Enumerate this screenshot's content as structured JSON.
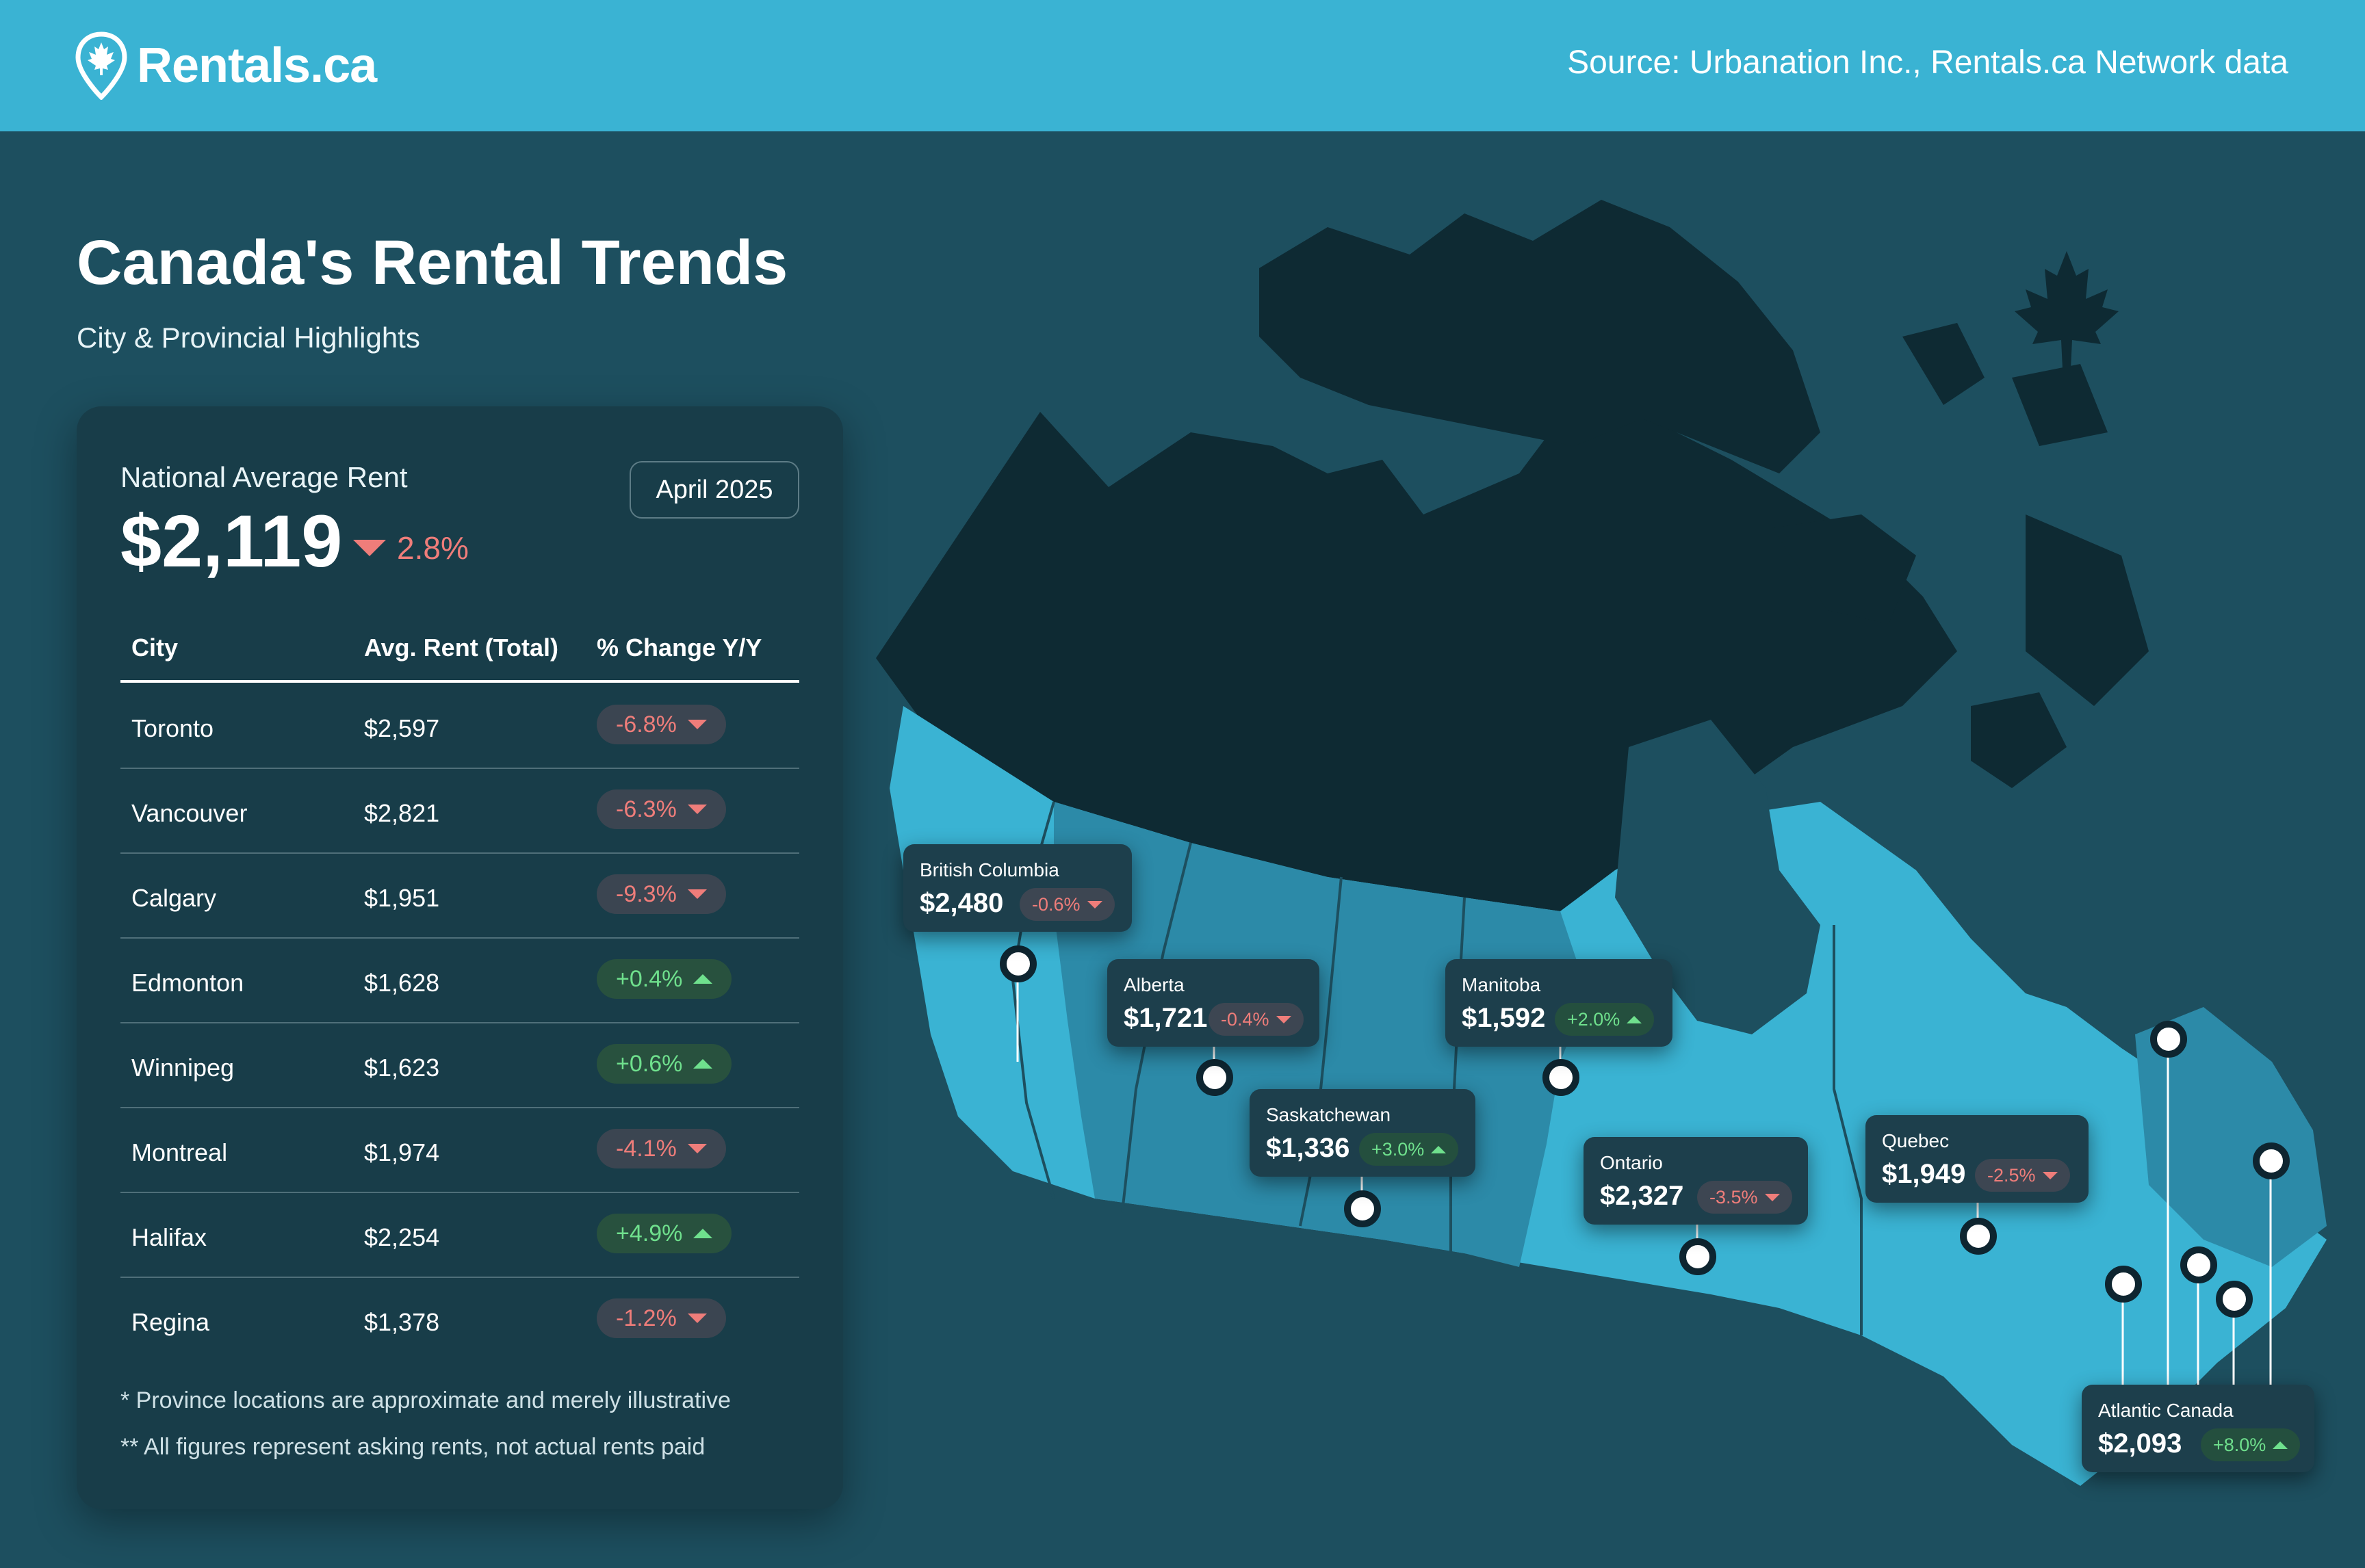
{
  "header": {
    "brand": "Rentals.ca",
    "source": "Source: Urbanation Inc., Rentals.ca Network data"
  },
  "title": "Canada's Rental Trends",
  "subtitle": "City & Provincial Highlights",
  "national": {
    "label": "National Average Rent",
    "value": "$2,119",
    "change": "2.8%",
    "direction": "down",
    "date": "April 2025"
  },
  "table": {
    "columns": [
      "City",
      "Avg. Rent (Total)",
      "% Change Y/Y"
    ],
    "rows": [
      {
        "city": "Toronto",
        "rent": "$2,597",
        "change": "-6.8%",
        "direction": "down"
      },
      {
        "city": "Vancouver",
        "rent": "$2,821",
        "change": "-6.3%",
        "direction": "down"
      },
      {
        "city": "Calgary",
        "rent": "$1,951",
        "change": "-9.3%",
        "direction": "down"
      },
      {
        "city": "Edmonton",
        "rent": "$1,628",
        "change": "+0.4%",
        "direction": "up"
      },
      {
        "city": "Winnipeg",
        "rent": "$1,623",
        "change": "+0.6%",
        "direction": "up"
      },
      {
        "city": "Montreal",
        "rent": "$1,974",
        "change": "-4.1%",
        "direction": "down"
      },
      {
        "city": "Halifax",
        "rent": "$2,254",
        "change": "+4.9%",
        "direction": "up"
      },
      {
        "city": "Regina",
        "rent": "$1,378",
        "change": "-1.2%",
        "direction": "down"
      }
    ]
  },
  "notes": [
    "* Province locations are approximate and merely illustrative",
    "** All figures represent asking rents, not actual rents paid"
  ],
  "provinces": [
    {
      "name": "British Columbia",
      "rent": "$2,480",
      "change": "-0.6%",
      "direction": "down"
    },
    {
      "name": "Alberta",
      "rent": "$1,721",
      "change": "-0.4%",
      "direction": "down"
    },
    {
      "name": "Manitoba",
      "rent": "$1,592",
      "change": "+2.0%",
      "direction": "up"
    },
    {
      "name": "Saskatchewan",
      "rent": "$1,336",
      "change": "+3.0%",
      "direction": "up"
    },
    {
      "name": "Ontario",
      "rent": "$2,327",
      "change": "-3.5%",
      "direction": "down"
    },
    {
      "name": "Quebec",
      "rent": "$1,949",
      "change": "-2.5%",
      "direction": "down"
    },
    {
      "name": "Atlantic Canada",
      "rent": "$2,093",
      "change": "+8.0%",
      "direction": "up"
    }
  ],
  "colors": {
    "header": "#3ab3d3",
    "background": "#1d4f5f",
    "panel": "#183d49",
    "negative": "#ef7d7a",
    "positive": "#6fe08d",
    "territories": "#0e2a33",
    "provinces": "#3ab3d3"
  },
  "icons": [
    "map-pin-maple-leaf-icon",
    "maple-leaf-icon",
    "chevron-down-icon",
    "chevron-up-icon"
  ]
}
